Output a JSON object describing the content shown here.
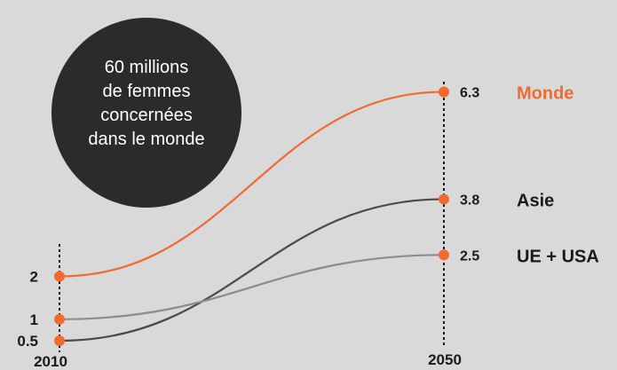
{
  "colors": {
    "background": "#d9d9d9",
    "monde": "#f26a2e",
    "asie": "#4a4a4a",
    "ue_usa": "#8c8c8c",
    "bubble": "#2b2b2b",
    "axis": "#1a1a1a"
  },
  "bubble": {
    "lines": [
      "60 millions",
      "de femmes",
      "concernées",
      "dans le monde"
    ]
  },
  "chart_data": {
    "type": "line",
    "x": [
      "2010",
      "2050"
    ],
    "series": [
      {
        "name": "Monde",
        "values": [
          2,
          6.3
        ],
        "labels": [
          "2",
          "6.3"
        ],
        "color_key": "monde"
      },
      {
        "name": "Asie",
        "values": [
          0.5,
          3.8
        ],
        "labels": [
          "0.5",
          "3.8"
        ],
        "color_key": "asie"
      },
      {
        "name": "UE + USA",
        "values": [
          1,
          2.5
        ],
        "labels": [
          "1",
          "2.5"
        ],
        "color_key": "ue_usa"
      }
    ],
    "title": "",
    "xlabel": "",
    "ylabel": "",
    "grid": false,
    "legend": "direct labels at right end"
  }
}
